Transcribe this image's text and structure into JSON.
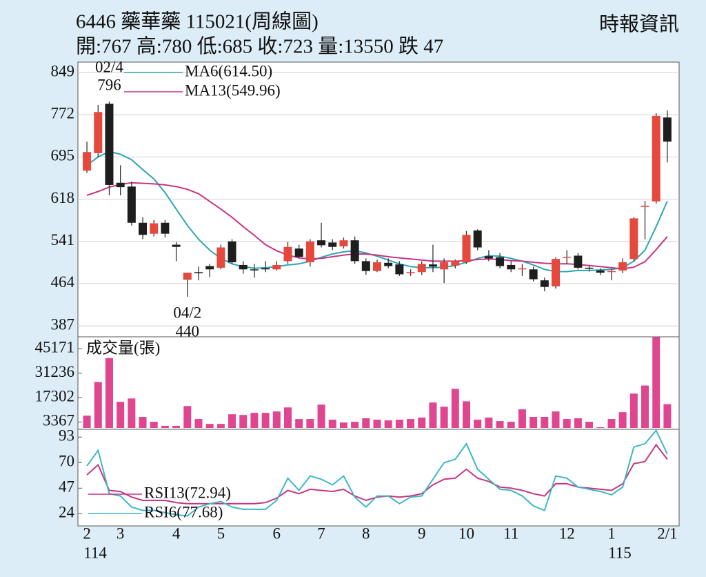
{
  "header": {
    "title": "6446  藥華藥 115021(周線圖)",
    "quote": "開:767 高:780 低:685 收:723 量:13550 跌 47",
    "source": "時報資訊"
  },
  "chart_data": [
    {
      "type": "candlestick",
      "open": [
        670,
        702,
        792,
        648,
        641,
        575,
        555,
        575,
        535,
        471,
        485,
        496,
        493,
        541,
        498,
        490,
        492,
        490,
        505,
        528,
        503,
        543,
        539,
        532,
        543,
        505,
        487,
        502,
        499,
        483,
        485,
        499,
        490,
        497,
        503,
        561,
        514,
        512,
        498,
        490,
        490,
        470,
        459,
        512,
        515,
        493,
        488,
        485,
        488,
        509,
        604,
        614,
        767
      ],
      "high": [
        723,
        790,
        796,
        680,
        650,
        585,
        580,
        580,
        540,
        484,
        495,
        500,
        535,
        545,
        505,
        500,
        505,
        505,
        540,
        535,
        545,
        575,
        545,
        548,
        550,
        510,
        508,
        510,
        505,
        490,
        505,
        535,
        510,
        508,
        560,
        563,
        525,
        520,
        505,
        500,
        495,
        475,
        512,
        525,
        520,
        497,
        492,
        490,
        510,
        585,
        615,
        775,
        780
      ],
      "low": [
        666,
        695,
        625,
        625,
        570,
        545,
        550,
        548,
        505,
        440,
        470,
        476,
        490,
        500,
        482,
        475,
        485,
        488,
        500,
        510,
        495,
        530,
        525,
        528,
        500,
        480,
        485,
        492,
        478,
        478,
        480,
        485,
        465,
        492,
        500,
        525,
        505,
        492,
        485,
        478,
        468,
        450,
        455,
        500,
        490,
        486,
        480,
        470,
        483,
        505,
        545,
        610,
        685
      ],
      "close": [
        704,
        777,
        644,
        640,
        575,
        553,
        574,
        555,
        531,
        484,
        484,
        490,
        530,
        503,
        490,
        489,
        490,
        498,
        531,
        513,
        541,
        534,
        531,
        543,
        505,
        487,
        503,
        496,
        481,
        485,
        500,
        495,
        503,
        506,
        553,
        530,
        510,
        496,
        490,
        492,
        472,
        458,
        509,
        513,
        493,
        491,
        484,
        487,
        503,
        583,
        606,
        770,
        723
      ],
      "up_color": "#e5483c",
      "down_color": "#1e1e1e",
      "lines": [
        {
          "name": "MA6(614.50)",
          "color": "#2aa6b3",
          "values": [
            680,
            695,
            705,
            700,
            690,
            672,
            655,
            630,
            600,
            570,
            545,
            525,
            510,
            500,
            495,
            492,
            493,
            495,
            498,
            500,
            505,
            512,
            518,
            522,
            524,
            520,
            514,
            507,
            500,
            495,
            493,
            493,
            494,
            497,
            503,
            510,
            515,
            514,
            510,
            505,
            498,
            490,
            486,
            486,
            488,
            488,
            489,
            490,
            493,
            505,
            525,
            568,
            614.5
          ]
        },
        {
          "name": "MA13(549.96)",
          "color": "#c83581",
          "values": [
            625,
            632,
            640,
            645,
            648,
            647,
            646,
            644,
            641,
            636,
            628,
            614,
            600,
            585,
            568,
            552,
            535,
            524,
            516,
            511,
            509,
            510,
            513,
            516,
            518,
            518,
            516,
            513,
            511,
            509,
            507,
            505,
            505,
            505,
            506,
            508,
            509,
            508,
            506,
            505,
            503,
            501,
            500,
            500,
            499,
            497,
            495,
            493,
            491,
            494,
            504,
            526,
            549.96
          ]
        }
      ],
      "annotations": [
        {
          "date": "02/4",
          "value": 796
        },
        {
          "date": "04/2",
          "value": 440
        }
      ],
      "ylim": [
        367,
        868
      ],
      "yticks": [
        849,
        772,
        695,
        618,
        541,
        464,
        387
      ],
      "grid": true
    },
    {
      "type": "bar",
      "title": "成交量(張)",
      "color": "#e0468f",
      "values": [
        7000,
        26200,
        39900,
        14900,
        16800,
        6300,
        3500,
        1200,
        1200,
        12500,
        5100,
        2300,
        2300,
        7800,
        7400,
        8600,
        8600,
        9400,
        11700,
        5100,
        5100,
        13300,
        4700,
        3100,
        3500,
        5500,
        4700,
        4300,
        4700,
        5100,
        5900,
        14500,
        12100,
        22300,
        15200,
        4700,
        5900,
        3900,
        3500,
        10600,
        6300,
        6300,
        9400,
        5100,
        5500,
        3500,
        400,
        5100,
        9000,
        19600,
        24200,
        51800,
        13550
      ],
      "ylim": [
        0,
        52000
      ],
      "yticks": [
        45171,
        31236,
        17302,
        3367
      ],
      "grid": false
    },
    {
      "type": "line",
      "categories": [
        "2",
        null,
        null,
        "3",
        null,
        null,
        null,
        null,
        "4",
        null,
        null,
        null,
        "5",
        null,
        null,
        null,
        null,
        "6",
        null,
        null,
        null,
        "7",
        null,
        null,
        null,
        "8",
        null,
        null,
        null,
        null,
        "9",
        null,
        null,
        null,
        "10",
        null,
        null,
        null,
        "11",
        null,
        null,
        null,
        null,
        "12",
        null,
        null,
        null,
        "1",
        null,
        null,
        null,
        null,
        "2/1"
      ],
      "year_labels": [
        "114",
        null,
        null,
        null,
        null,
        null,
        null,
        null,
        null,
        null,
        null,
        null,
        null,
        null,
        null,
        null,
        null,
        null,
        null,
        null,
        null,
        null,
        null,
        null,
        null,
        null,
        null,
        null,
        null,
        null,
        null,
        null,
        null,
        null,
        null,
        null,
        null,
        null,
        null,
        null,
        null,
        null,
        null,
        null,
        null,
        null,
        null,
        "115",
        null,
        null,
        null,
        null,
        null
      ],
      "series": [
        {
          "name": "RSI13(72.94)",
          "color": "#c83581",
          "values": [
            59,
            68,
            45,
            44,
            39,
            36,
            36,
            36,
            34,
            33,
            33,
            33,
            33,
            33,
            33,
            33,
            34,
            38,
            45,
            42,
            46,
            45,
            44,
            46,
            40,
            36,
            39,
            40,
            39,
            40,
            42,
            50,
            55,
            56,
            64,
            56,
            53,
            48,
            47,
            45,
            42,
            40,
            51,
            51,
            48,
            47,
            46,
            45,
            51,
            69,
            71,
            86,
            72.94
          ]
        },
        {
          "name": "RSI6(77.68)",
          "color": "#3cb7c5",
          "values": [
            67,
            81,
            42,
            40,
            30,
            27,
            27,
            25,
            23,
            22,
            30,
            33,
            35,
            30,
            28,
            28,
            28,
            36,
            56,
            45,
            58,
            55,
            50,
            58,
            39,
            30,
            40,
            40,
            33,
            39,
            40,
            55,
            70,
            73,
            87,
            64,
            55,
            46,
            45,
            40,
            31,
            27,
            58,
            56,
            48,
            46,
            44,
            41,
            48,
            84,
            87,
            99,
            77.68
          ]
        }
      ],
      "ylim": [
        13,
        100
      ],
      "yticks": [
        93,
        70,
        47,
        24
      ],
      "grid": false
    }
  ]
}
